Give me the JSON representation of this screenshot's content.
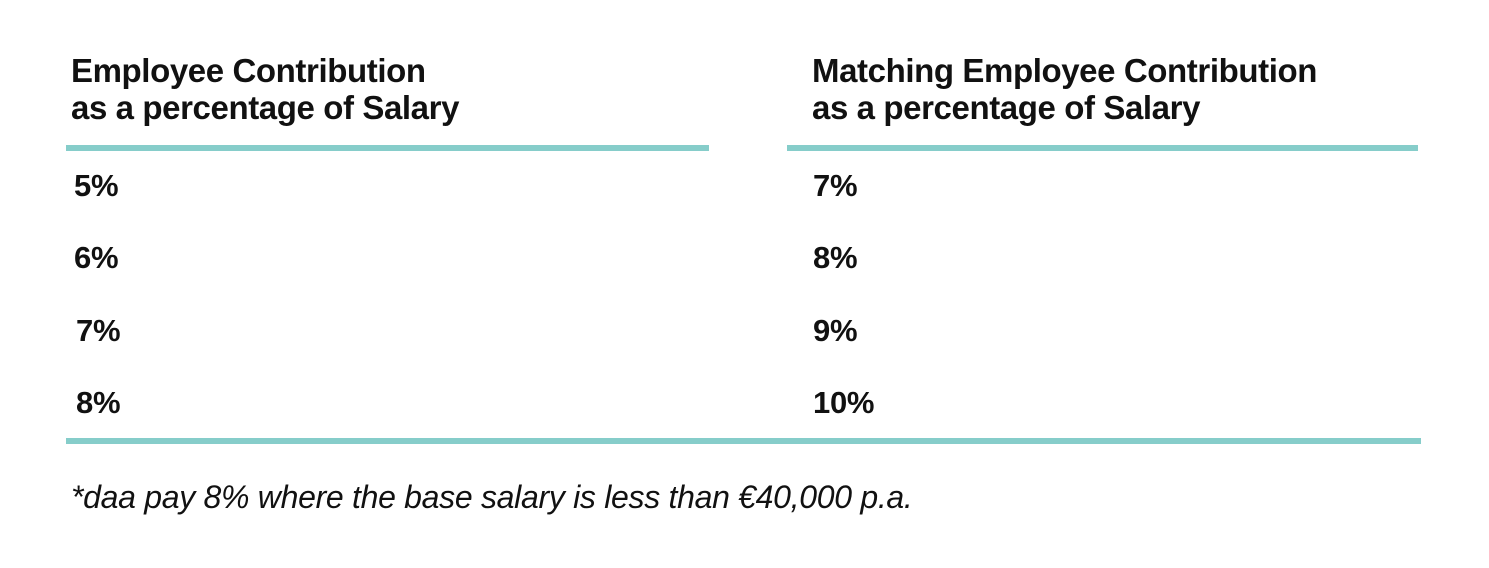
{
  "accent_color": "#86cdca",
  "table": {
    "columns": [
      {
        "header_line1": "Employee Contribution",
        "header_line2": "as a percentage of Salary"
      },
      {
        "header_line1": "Matching Employee Contribution",
        "header_line2": "as a percentage of Salary"
      }
    ],
    "rows": [
      [
        "5%",
        "7%"
      ],
      [
        "6%",
        "8%"
      ],
      [
        "7%",
        "9%"
      ],
      [
        "8%",
        "10%"
      ]
    ]
  },
  "footnote": "*daa pay 8% where the base salary is less than €40,000 p.a."
}
